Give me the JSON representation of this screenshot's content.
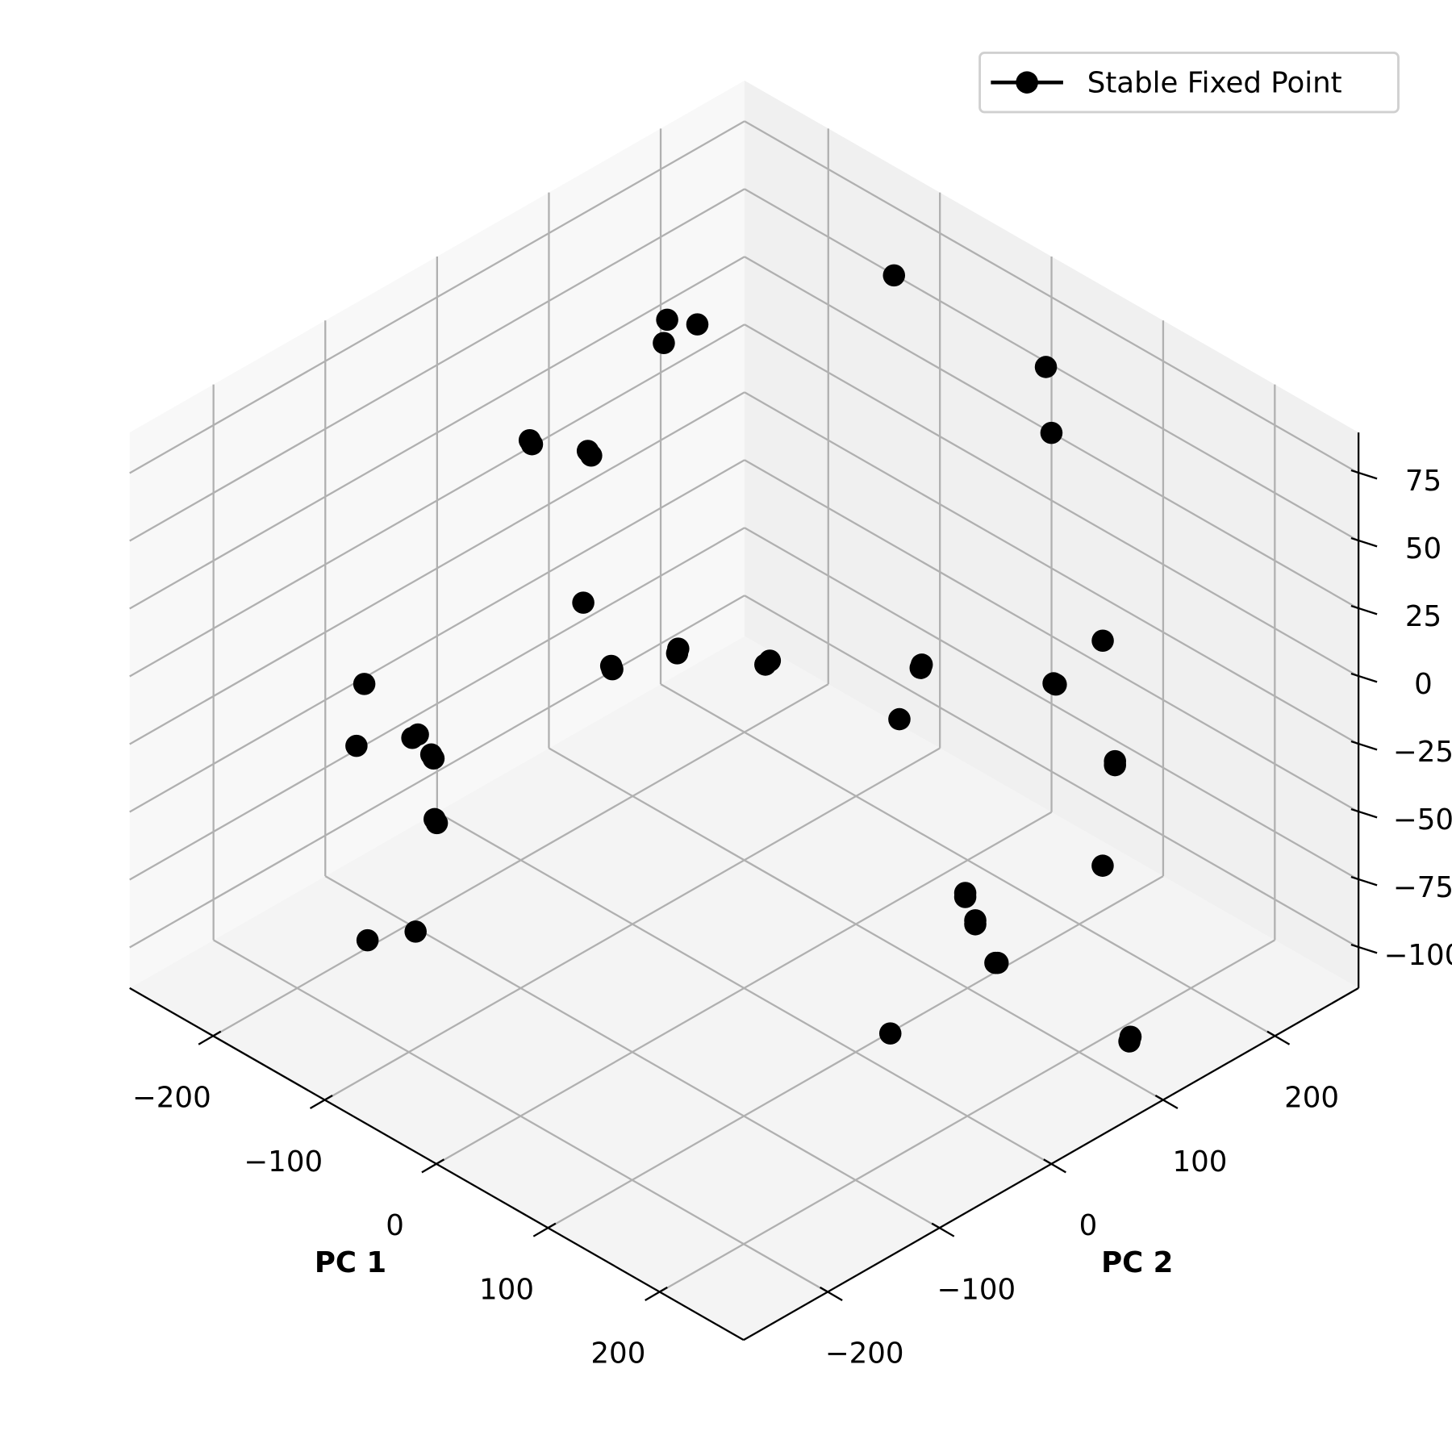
{
  "chart_data": {
    "type": "scatter3d",
    "xlabel": "PC 1",
    "ylabel": "PC 2",
    "xlim": [
      -275,
      275
    ],
    "ylim": [
      -275,
      275
    ],
    "zlim": [
      -115,
      90
    ],
    "xticks": [
      {
        "value": -200,
        "label": "−200"
      },
      {
        "value": -100,
        "label": "−100"
      },
      0,
      100,
      200
    ],
    "yticks": [
      {
        "value": -200,
        "label": "−200"
      },
      {
        "value": -100,
        "label": "−100"
      },
      0,
      100,
      200
    ],
    "zticks": [
      {
        "value": -100,
        "label": "−100"
      },
      {
        "value": -75,
        "label": "−75"
      },
      {
        "value": -50,
        "label": "−50"
      },
      {
        "value": -25,
        "label": "−25"
      },
      0,
      25,
      50,
      75
    ],
    "grid": true,
    "legend": "upper right",
    "series": [
      {
        "name": "Stable Fixed Point",
        "color": "#000000",
        "x": [
          -60,
          -148,
          -133,
          -144,
          33,
          51,
          -181,
          -179,
          -153,
          -150,
          -119,
          122,
          -198,
          -66,
          -65,
          -91,
          -90,
          -22,
          -23,
          47,
          47,
          110,
          112,
          50,
          -187,
          -162,
          -164,
          -151,
          -149,
          156,
          157,
          -135,
          -133,
          175,
          120,
          121,
          131,
          132,
          150,
          151,
          -117,
          -136,
          120,
          228,
          229
        ],
        "y": [
          194,
          79,
          91,
          72,
          237,
          224,
          -11,
          -11,
          13,
          13,
          -25,
          199,
          -142,
          7,
          5,
          -28,
          -28,
          45,
          42,
          112,
          111,
          167,
          167,
          89,
          -160,
          -130,
          -133,
          -129,
          -129,
          176,
          175,
          -142,
          -142,
          146,
          78,
          77,
          76,
          75,
          75,
          76,
          -177,
          -201,
          11,
          118,
          116
        ],
        "z": [
          88,
          78,
          77,
          72,
          66,
          49,
          47,
          46,
          44,
          43,
          5,
          -5,
          -16,
          -7,
          -8,
          -11,
          -12,
          -10,
          -11,
          -11,
          -12,
          -16,
          -16,
          -25,
          -32,
          -29,
          -30,
          -34,
          -35,
          -36,
          -37,
          -51,
          -52,
          -63,
          -70,
          -71,
          -77,
          -78,
          -88,
          -88,
          -80,
          -82,
          -106,
          -107,
          -108
        ]
      }
    ]
  }
}
